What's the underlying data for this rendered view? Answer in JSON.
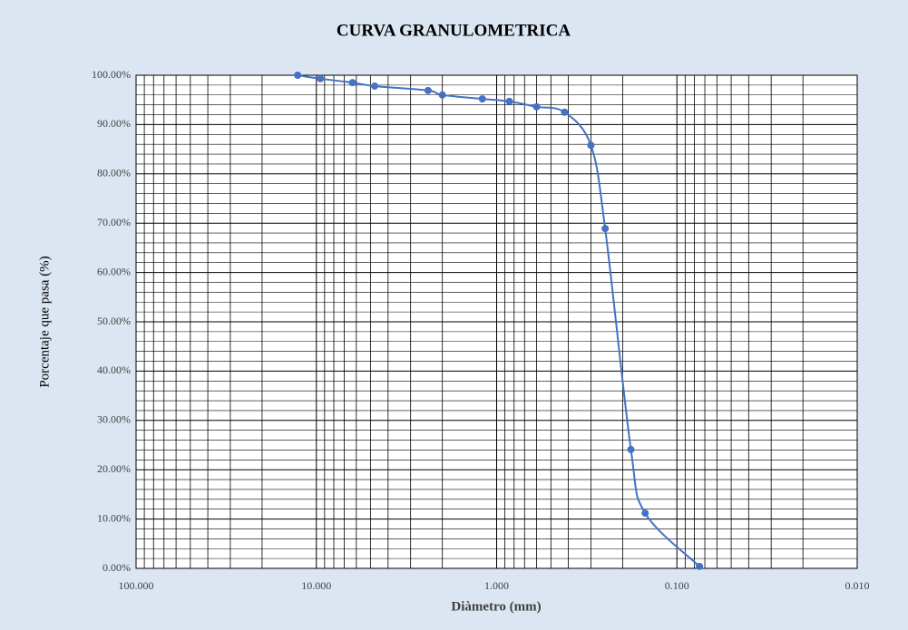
{
  "chart_data": {
    "type": "line",
    "title": "CURVA GRANULOMETRICA",
    "x_label": "Diàmetro (mm)",
    "y_label": "Porcentaje que pasa (%)",
    "x_log": true,
    "grid": true,
    "minor_grid": true,
    "xlim": [
      100,
      0.01
    ],
    "xticks": [
      {
        "value": 100,
        "label": "100.000"
      },
      {
        "value": 10,
        "label": "10.000"
      },
      {
        "value": 1,
        "label": "1.000"
      },
      {
        "value": 0.1,
        "label": "0.100"
      },
      {
        "value": 0.01,
        "label": "0.010"
      }
    ],
    "ylim": [
      0,
      100
    ],
    "yticks": [
      {
        "value": 0,
        "label": "0.00%"
      },
      {
        "value": 10,
        "label": "10.00%"
      },
      {
        "value": 20,
        "label": "20.00%"
      },
      {
        "value": 30,
        "label": "30.00%"
      },
      {
        "value": 40,
        "label": "40.00%"
      },
      {
        "value": 50,
        "label": "50.00%"
      },
      {
        "value": 60,
        "label": "60.00%"
      },
      {
        "value": 70,
        "label": "70.00%"
      },
      {
        "value": 80,
        "label": "80.00%"
      },
      {
        "value": 90,
        "label": "90.00%"
      },
      {
        "value": 100,
        "label": "100.00%"
      }
    ],
    "series": [
      {
        "color": "#4472c4",
        "x": [
          12.7,
          9.5,
          6.3,
          4.75,
          2.4,
          2.0,
          1.2,
          0.85,
          0.6,
          0.42,
          0.3,
          0.25,
          0.18,
          0.15,
          0.075
        ],
        "values": [
          100,
          99.3,
          98.5,
          97.8,
          96.9,
          96.0,
          95.2,
          94.7,
          93.6,
          92.5,
          85.8,
          68.9,
          24.1,
          11.2,
          0.4
        ]
      }
    ]
  }
}
